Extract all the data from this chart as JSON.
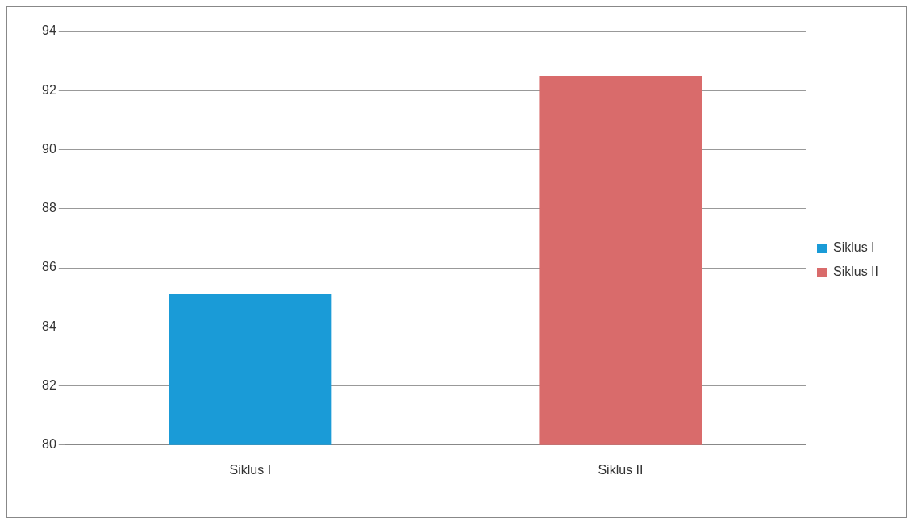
{
  "chart_data": {
    "type": "bar",
    "categories": [
      "Siklus I",
      "Siklus II"
    ],
    "series": [
      {
        "name": "Siklus I",
        "color": "#1a9bd7",
        "values": [
          85.1,
          null
        ]
      },
      {
        "name": "Siklus II",
        "color": "#d96b6b",
        "values": [
          null,
          92.5
        ]
      }
    ],
    "ylim": [
      80,
      94
    ],
    "yticks": [
      80,
      82,
      84,
      86,
      88,
      90,
      92,
      94
    ],
    "grid": "y",
    "legend": "right"
  }
}
